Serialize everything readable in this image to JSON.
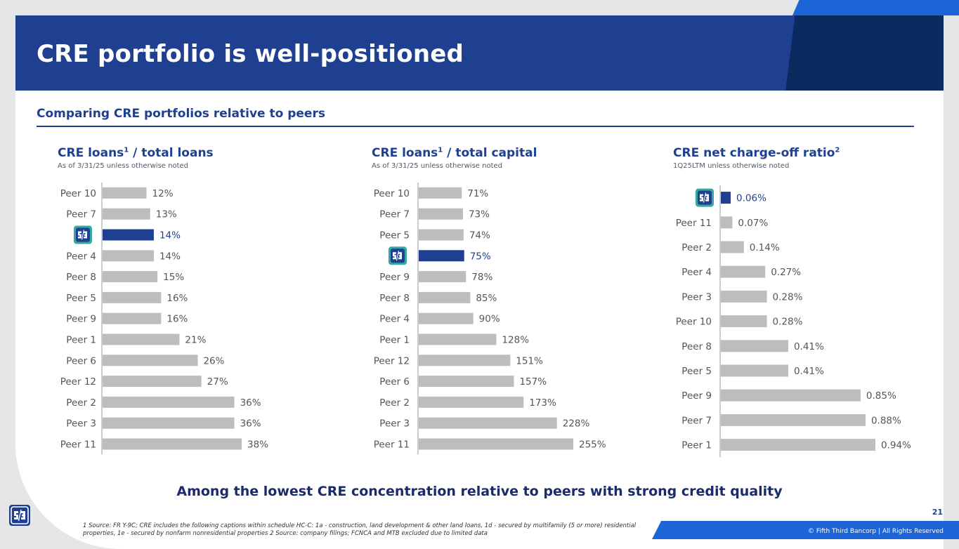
{
  "header": {
    "title": "CRE portfolio is well-positioned"
  },
  "section": {
    "subtitle": "Comparing CRE portfolios relative to peers"
  },
  "colors": {
    "brand": "#1f4091",
    "bar_default": "#bdbdbd",
    "bar_highlight": "#1f4091",
    "accent": "#1d64d6"
  },
  "chart_data": [
    {
      "type": "bar",
      "orientation": "horizontal",
      "title_main": "CRE loans",
      "title_sup": "1",
      "title_rest": " / total loans",
      "subtitle": "As of 3/31/25 unless otherwise noted",
      "categories": [
        "Peer 10",
        "Peer 7",
        "Fifth Third",
        "Peer 4",
        "Peer 8",
        "Peer 5",
        "Peer 9",
        "Peer 1",
        "Peer 6",
        "Peer 12",
        "Peer 2",
        "Peer 3",
        "Peer 11"
      ],
      "values": [
        12,
        13,
        14,
        14,
        15,
        16,
        16,
        21,
        26,
        27,
        36,
        36,
        38
      ],
      "value_labels": [
        "12%",
        "13%",
        "14%",
        "14%",
        "15%",
        "16%",
        "16%",
        "21%",
        "26%",
        "27%",
        "36%",
        "36%",
        "38%"
      ],
      "highlight_index": 2,
      "xlim": [
        0,
        38
      ]
    },
    {
      "type": "bar",
      "orientation": "horizontal",
      "title_main": "CRE loans",
      "title_sup": "1",
      "title_rest": " / total capital",
      "subtitle": "As of 3/31/25 unless otherwise noted",
      "categories": [
        "Peer 10",
        "Peer 7",
        "Peer 5",
        "Fifth Third",
        "Peer 9",
        "Peer 8",
        "Peer 4",
        "Peer 1",
        "Peer 12",
        "Peer 6",
        "Peer 2",
        "Peer 3",
        "Peer 11"
      ],
      "values": [
        71,
        73,
        74,
        75,
        78,
        85,
        90,
        128,
        151,
        157,
        173,
        228,
        255
      ],
      "value_labels": [
        "71%",
        "73%",
        "74%",
        "75%",
        "78%",
        "85%",
        "90%",
        "128%",
        "151%",
        "157%",
        "173%",
        "228%",
        "255%"
      ],
      "highlight_index": 3,
      "xlim": [
        0,
        255
      ]
    },
    {
      "type": "bar",
      "orientation": "horizontal",
      "title_main": "CRE net charge-off ratio",
      "title_sup": "2",
      "title_rest": "",
      "subtitle": "1Q25LTM unless otherwise noted",
      "categories": [
        "Fifth Third",
        "Peer 11",
        "Peer 2",
        "Peer 4",
        "Peer 3",
        "Peer 10",
        "Peer 8",
        "Peer 5",
        "Peer 9",
        "Peer 7",
        "Peer 1"
      ],
      "values": [
        0.06,
        0.07,
        0.14,
        0.27,
        0.28,
        0.28,
        0.41,
        0.41,
        0.85,
        0.88,
        0.94
      ],
      "value_labels": [
        "0.06%",
        "0.07%",
        "0.14%",
        "0.27%",
        "0.28%",
        "0.28%",
        "0.41%",
        "0.41%",
        "0.85%",
        "0.88%",
        "0.94%"
      ],
      "highlight_index": 0,
      "xlim": [
        0,
        0.94
      ]
    }
  ],
  "tagline": "Among the lowest CRE concentration relative to peers with strong credit quality",
  "page_number": "21",
  "footnote": "1 Source: FR Y-9C; CRE includes the following captions within schedule HC-C: 1a - construction, land development & other land loans, 1d - secured by multifamily (5 or more) residential properties, 1e - secured by nonfarm nonresidential properties 2 Source: company filings; FCNCA and MTB excluded due to limited data",
  "copyright": "© Fifth Third Bancorp | All Rights Reserved"
}
